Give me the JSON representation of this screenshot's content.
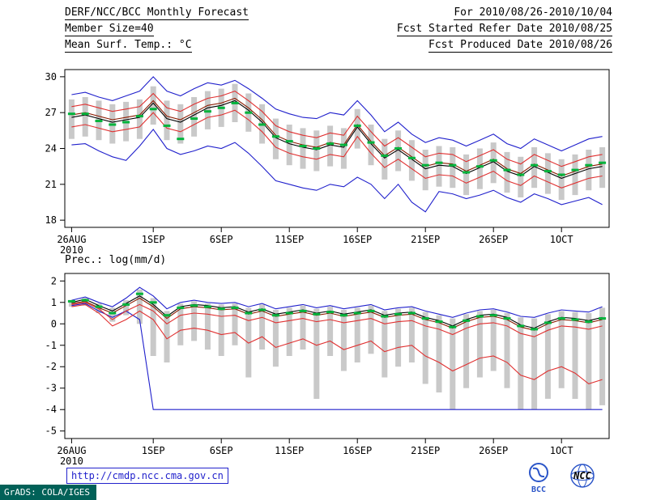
{
  "header": {
    "left": [
      "DERF/NCC/BCC Monthly Forecast",
      "Member Size=40",
      "Mean Surf. Temp.: °C"
    ],
    "right": [
      "For 2010/08/26-2010/10/04",
      "Fcst Started Refer Date 2010/08/25",
      "Fcst Produced Date 2010/08/26"
    ]
  },
  "panel2": {
    "label": "Prec.: log(mm/d)"
  },
  "footer": {
    "url": "http://cmdp.ncc.cma.gov.cn",
    "stamp": "GrADS: COLA/IGES",
    "logo_bcc": "BCC",
    "logo_ncc": "NCC"
  },
  "colors": {
    "blue": "#2020cc",
    "red": "#e03030",
    "darkred": "#8b1a00",
    "black": "#000000",
    "green": "#00b43c",
    "gray": "#c9c9c9",
    "logo_blue": "#2b55c8",
    "url_blue": "#2222cc",
    "stamp_bg": "#016158",
    "stamp_fg": "#ffffff"
  },
  "chart_data": [
    {
      "type": "line",
      "title": "Mean Surf. Temp.: °C",
      "xlabel": "",
      "ylabel": "°C",
      "ylim": [
        17.4,
        30.6
      ],
      "yticks": [
        18,
        21,
        24,
        27,
        30
      ],
      "x_days": 40,
      "xticks": [
        {
          "day": 0,
          "label": "26AUG",
          "sublabel": "2010"
        },
        {
          "day": 6,
          "label": "1SEP"
        },
        {
          "day": 11,
          "label": "6SEP"
        },
        {
          "day": 16,
          "label": "11SEP"
        },
        {
          "day": 21,
          "label": "16SEP"
        },
        {
          "day": 26,
          "label": "21SEP"
        },
        {
          "day": 31,
          "label": "26SEP"
        },
        {
          "day": 36,
          "label": "1OCT"
        }
      ],
      "bars": {
        "color": "gray",
        "high": [
          28.1,
          28.3,
          28.0,
          27.7,
          27.9,
          28.1,
          29.2,
          28.0,
          27.7,
          28.3,
          28.8,
          29.0,
          29.4,
          28.6,
          27.7,
          26.5,
          26.0,
          25.7,
          25.5,
          25.9,
          25.7,
          27.3,
          26.0,
          24.8,
          25.5,
          24.7,
          23.9,
          24.2,
          24.1,
          23.5,
          24.0,
          24.5,
          23.7,
          23.3,
          24.1,
          23.6,
          23.1,
          23.5,
          23.9,
          24.1
        ],
        "low": [
          24.8,
          25.0,
          24.7,
          24.4,
          24.6,
          24.8,
          26.0,
          24.7,
          24.4,
          25.0,
          25.6,
          25.8,
          26.2,
          25.4,
          24.4,
          23.1,
          22.6,
          22.3,
          22.1,
          22.5,
          22.3,
          24.0,
          22.6,
          21.4,
          22.1,
          21.3,
          20.5,
          20.8,
          20.7,
          20.1,
          20.6,
          21.1,
          20.3,
          19.9,
          20.7,
          20.2,
          19.7,
          20.1,
          20.5,
          20.7
        ]
      },
      "series": [
        {
          "name": "ensemble-max",
          "color": "blue",
          "style": "line",
          "values": [
            28.5,
            28.7,
            28.3,
            28.0,
            28.4,
            28.8,
            30.0,
            28.8,
            28.4,
            29.0,
            29.5,
            29.3,
            29.7,
            29.0,
            28.2,
            27.3,
            26.9,
            26.6,
            26.5,
            27.0,
            26.8,
            28.0,
            26.8,
            25.4,
            26.2,
            25.2,
            24.5,
            24.9,
            24.7,
            24.2,
            24.7,
            25.2,
            24.4,
            24.0,
            24.8,
            24.3,
            23.8,
            24.3,
            24.8,
            25.0
          ]
        },
        {
          "name": "ensemble-min",
          "color": "blue",
          "style": "line",
          "values": [
            24.3,
            24.4,
            23.8,
            23.3,
            23.0,
            24.2,
            25.6,
            24.0,
            23.5,
            23.8,
            24.2,
            24.0,
            24.5,
            23.6,
            22.5,
            21.3,
            21.0,
            20.7,
            20.5,
            21.0,
            20.8,
            21.6,
            21.0,
            19.8,
            21.0,
            19.5,
            18.7,
            20.4,
            20.2,
            19.8,
            20.1,
            20.5,
            19.9,
            19.5,
            20.2,
            19.8,
            19.3,
            19.6,
            19.9,
            19.3
          ]
        },
        {
          "name": "upper-quartile",
          "color": "red",
          "style": "line",
          "values": [
            27.5,
            27.7,
            27.4,
            27.1,
            27.3,
            27.5,
            28.6,
            27.4,
            27.1,
            27.7,
            28.2,
            28.4,
            28.8,
            28.0,
            27.1,
            25.9,
            25.4,
            25.1,
            24.9,
            25.3,
            25.1,
            26.7,
            25.4,
            24.2,
            24.9,
            24.1,
            23.3,
            23.6,
            23.5,
            22.9,
            23.4,
            23.9,
            23.1,
            22.7,
            23.5,
            23.0,
            22.5,
            22.9,
            23.3,
            23.5
          ]
        },
        {
          "name": "lower-quartile",
          "color": "red",
          "style": "line",
          "values": [
            25.8,
            26.0,
            25.7,
            25.4,
            25.6,
            25.8,
            27.0,
            25.7,
            25.4,
            26.0,
            26.6,
            26.8,
            27.2,
            26.4,
            25.4,
            24.1,
            23.6,
            23.3,
            23.1,
            23.5,
            23.3,
            25.0,
            23.6,
            22.4,
            23.1,
            22.3,
            21.5,
            21.8,
            21.7,
            21.1,
            21.6,
            22.1,
            21.3,
            20.9,
            21.7,
            21.2,
            20.7,
            21.1,
            21.5,
            21.7
          ]
        },
        {
          "name": "ensemble-median",
          "color": "darkred",
          "style": "line",
          "values": [
            26.8,
            27.0,
            26.7,
            26.4,
            26.6,
            26.8,
            28.0,
            26.7,
            26.4,
            27.0,
            27.6,
            27.8,
            28.2,
            27.4,
            26.4,
            25.1,
            24.6,
            24.3,
            24.1,
            24.5,
            24.3,
            26.0,
            24.6,
            23.4,
            24.1,
            23.3,
            22.5,
            22.8,
            22.7,
            22.1,
            22.6,
            23.1,
            22.3,
            21.9,
            22.7,
            22.2,
            21.7,
            22.1,
            22.5,
            22.7
          ]
        },
        {
          "name": "ensemble-mean",
          "color": "black",
          "style": "line",
          "values": [
            26.6,
            26.8,
            26.5,
            26.2,
            26.4,
            26.6,
            27.8,
            26.5,
            26.2,
            26.8,
            27.4,
            27.6,
            28.0,
            27.2,
            26.2,
            24.9,
            24.4,
            24.1,
            23.9,
            24.3,
            24.1,
            25.8,
            24.4,
            23.2,
            23.9,
            23.1,
            22.3,
            22.6,
            22.5,
            21.9,
            22.4,
            22.9,
            22.1,
            21.7,
            22.5,
            22.0,
            21.5,
            21.9,
            22.3,
            22.5
          ]
        },
        {
          "name": "climatology",
          "color": "green",
          "style": "dash",
          "values": [
            26.9,
            26.9,
            26.3,
            26.0,
            26.2,
            26.7,
            27.3,
            25.9,
            24.8,
            26.5,
            27.1,
            27.4,
            27.8,
            27.0,
            26.0,
            25.0,
            24.6,
            24.2,
            24.0,
            24.4,
            24.3,
            25.9,
            24.5,
            23.4,
            24.0,
            23.2,
            22.6,
            22.8,
            22.6,
            22.0,
            22.5,
            23.0,
            22.2,
            21.8,
            22.6,
            22.1,
            21.8,
            22.2,
            22.6,
            22.8
          ]
        }
      ]
    },
    {
      "type": "line",
      "title": "Prec.: log(mm/d)",
      "xlabel": "",
      "ylabel": "log(mm/d)",
      "ylim": [
        -5.35,
        2.35
      ],
      "yticks": [
        -5,
        -4,
        -3,
        -2,
        -1,
        0,
        1,
        2
      ],
      "x_days": 40,
      "xticks": [
        {
          "day": 0,
          "label": "26AUG",
          "sublabel": "2010"
        },
        {
          "day": 6,
          "label": "1SEP"
        },
        {
          "day": 11,
          "label": "6SEP"
        },
        {
          "day": 16,
          "label": "11SEP"
        },
        {
          "day": 21,
          "label": "16SEP"
        },
        {
          "day": 26,
          "label": "21SEP"
        },
        {
          "day": 31,
          "label": "26SEP"
        },
        {
          "day": 36,
          "label": "1OCT"
        }
      ],
      "bars": {
        "color": "gray",
        "high": [
          1.05,
          1.2,
          0.95,
          0.75,
          1.1,
          1.6,
          1.2,
          0.6,
          0.95,
          1.05,
          0.95,
          0.9,
          0.95,
          0.75,
          0.9,
          0.65,
          0.75,
          0.85,
          0.7,
          0.8,
          0.65,
          0.75,
          0.85,
          0.6,
          0.7,
          0.75,
          0.55,
          0.4,
          0.25,
          0.45,
          0.6,
          0.65,
          0.5,
          0.3,
          0.25,
          0.45,
          0.6,
          0.55,
          0.5,
          0.75
        ],
        "low": [
          0.8,
          0.85,
          0.5,
          0.1,
          0.4,
          0.0,
          -1.5,
          -1.8,
          -1.0,
          -0.8,
          -1.2,
          -1.5,
          -1.0,
          -2.5,
          -1.2,
          -2.0,
          -1.5,
          -1.2,
          -3.5,
          -1.5,
          -2.2,
          -1.8,
          -1.4,
          -2.5,
          -2.0,
          -1.8,
          -2.8,
          -3.2,
          -4.0,
          -3.0,
          -2.5,
          -2.2,
          -3.0,
          -4.0,
          -4.0,
          -3.5,
          -3.0,
          -3.5,
          -4.0,
          -3.8
        ]
      },
      "series": [
        {
          "name": "ensemble-max",
          "color": "blue",
          "style": "line",
          "values": [
            1.1,
            1.25,
            1.0,
            0.8,
            1.2,
            1.7,
            1.3,
            0.7,
            1.0,
            1.1,
            1.0,
            0.95,
            1.0,
            0.8,
            0.95,
            0.7,
            0.8,
            0.9,
            0.75,
            0.85,
            0.7,
            0.8,
            0.9,
            0.65,
            0.75,
            0.8,
            0.6,
            0.45,
            0.3,
            0.5,
            0.65,
            0.7,
            0.55,
            0.35,
            0.3,
            0.5,
            0.65,
            0.6,
            0.55,
            0.8
          ]
        },
        {
          "name": "ensemble-min",
          "color": "blue",
          "style": "line",
          "values": [
            0.85,
            0.95,
            0.6,
            0.3,
            0.6,
            0.2,
            -4.0,
            -4.0,
            -4.0,
            -4.0,
            -4.0,
            -4.0,
            -4.0,
            -4.0,
            -4.0,
            -4.0,
            -4.0,
            -4.0,
            -4.0,
            -4.0,
            -4.0,
            -4.0,
            -4.0,
            -4.0,
            -4.0,
            -4.0,
            -4.0,
            -4.0,
            -4.0,
            -4.0,
            -4.0,
            -4.0,
            -4.0,
            -4.0,
            -4.0,
            -4.0,
            -4.0,
            -4.0,
            -4.0,
            -4.0
          ]
        },
        {
          "name": "upper-quartile",
          "color": "red",
          "style": "line",
          "values": [
            0.9,
            1.0,
            0.7,
            0.2,
            0.6,
            0.9,
            0.6,
            0.0,
            0.4,
            0.5,
            0.45,
            0.35,
            0.4,
            0.15,
            0.3,
            0.05,
            0.15,
            0.25,
            0.1,
            0.2,
            0.05,
            0.15,
            0.25,
            0.0,
            0.1,
            0.15,
            -0.1,
            -0.25,
            -0.5,
            -0.2,
            0.0,
            0.05,
            -0.1,
            -0.45,
            -0.6,
            -0.3,
            -0.1,
            -0.15,
            -0.25,
            -0.1
          ]
        },
        {
          "name": "lower-quartile",
          "color": "red",
          "style": "line",
          "values": [
            0.8,
            0.9,
            0.5,
            -0.1,
            0.2,
            0.6,
            0.2,
            -0.7,
            -0.3,
            -0.2,
            -0.3,
            -0.5,
            -0.4,
            -0.9,
            -0.6,
            -1.1,
            -0.9,
            -0.7,
            -1.0,
            -0.8,
            -1.2,
            -1.0,
            -0.8,
            -1.3,
            -1.1,
            -1.0,
            -1.5,
            -1.8,
            -2.2,
            -1.9,
            -1.6,
            -1.5,
            -1.8,
            -2.4,
            -2.6,
            -2.2,
            -2.0,
            -2.3,
            -2.8,
            -2.6
          ]
        },
        {
          "name": "ensemble-median",
          "color": "darkred",
          "style": "line",
          "values": [
            0.95,
            1.05,
            0.75,
            0.5,
            0.85,
            1.2,
            0.8,
            0.25,
            0.7,
            0.8,
            0.75,
            0.65,
            0.7,
            0.45,
            0.6,
            0.35,
            0.45,
            0.55,
            0.4,
            0.5,
            0.35,
            0.45,
            0.55,
            0.3,
            0.4,
            0.45,
            0.2,
            0.05,
            -0.2,
            0.1,
            0.3,
            0.35,
            0.2,
            -0.15,
            -0.3,
            0.0,
            0.2,
            0.15,
            0.05,
            0.2
          ]
        },
        {
          "name": "ensemble-mean",
          "color": "black",
          "style": "line",
          "values": [
            1.0,
            1.15,
            0.85,
            0.6,
            0.95,
            1.3,
            0.9,
            0.35,
            0.8,
            0.9,
            0.85,
            0.75,
            0.8,
            0.55,
            0.7,
            0.45,
            0.55,
            0.65,
            0.5,
            0.6,
            0.45,
            0.55,
            0.65,
            0.4,
            0.5,
            0.55,
            0.3,
            0.15,
            -0.1,
            0.2,
            0.4,
            0.45,
            0.3,
            -0.05,
            -0.2,
            0.1,
            0.3,
            0.25,
            0.15,
            0.3
          ]
        },
        {
          "name": "climatology",
          "color": "green",
          "style": "dash",
          "values": [
            1.05,
            1.1,
            0.8,
            0.5,
            0.9,
            1.4,
            1.0,
            0.4,
            0.75,
            0.85,
            0.8,
            0.7,
            0.75,
            0.5,
            0.65,
            0.4,
            0.5,
            0.6,
            0.45,
            0.55,
            0.4,
            0.5,
            0.6,
            0.35,
            0.45,
            0.5,
            0.25,
            0.1,
            -0.15,
            0.15,
            0.35,
            0.4,
            0.25,
            -0.1,
            -0.25,
            0.05,
            0.25,
            0.2,
            0.1,
            0.25
          ]
        }
      ]
    }
  ]
}
